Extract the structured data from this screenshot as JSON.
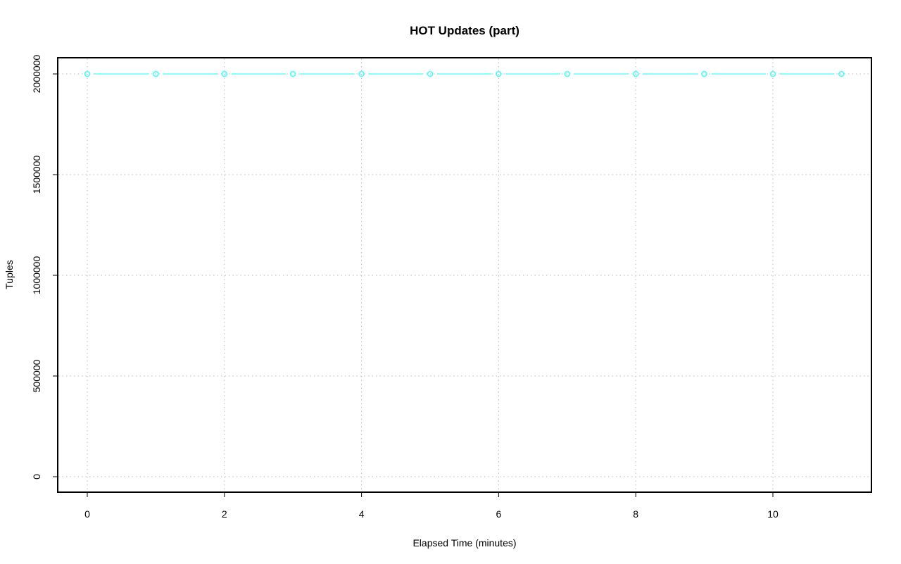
{
  "chart_data": {
    "type": "line",
    "title": "HOT Updates (part)",
    "xlabel": "Elapsed Time (minutes)",
    "ylabel": "Tuples",
    "xlim": [
      -0.4,
      11.4
    ],
    "ylim": [
      -75000,
      2080000
    ],
    "x_ticks": [
      "0",
      "2",
      "4",
      "6",
      "8",
      "10"
    ],
    "y_ticks": [
      "0",
      "500000",
      "1000000",
      "1500000",
      "2000000"
    ],
    "grid": true,
    "series": [
      {
        "color": "#40ffff",
        "x": [
          0,
          1,
          2,
          3,
          4,
          5,
          6,
          7,
          8,
          9,
          10,
          11
        ],
        "y": [
          2000000,
          2000000,
          2000000,
          2000000,
          2000000,
          2000000,
          2000000,
          2000000,
          2000000,
          2000000,
          2000000,
          2000000
        ]
      }
    ]
  }
}
